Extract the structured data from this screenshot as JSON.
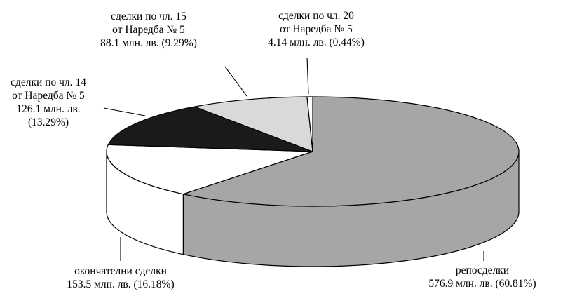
{
  "chart_data": {
    "type": "pie",
    "style": "3d",
    "unit": "млн. лв.",
    "slices": [
      {
        "key": "repo",
        "value": 576.9,
        "percent": 60.81,
        "color": "#a6a6a6",
        "label_lines": [
          "репосделки",
          "576.9 млн. лв. (60.81%)"
        ]
      },
      {
        "key": "final",
        "value": 153.5,
        "percent": 16.18,
        "color": "#ffffff",
        "label_lines": [
          "окончателни сделки",
          "153.5 млн. лв. (16.18%)"
        ]
      },
      {
        "key": "art14",
        "value": 126.1,
        "percent": 13.29,
        "color": "#1a1a1a",
        "label_lines": [
          "сделки по чл. 14",
          "от Наредба № 5",
          "126.1 млн. лв.",
          "(13.29%)"
        ]
      },
      {
        "key": "art15",
        "value": 88.1,
        "percent": 9.29,
        "color": "#d9d9d9",
        "label_lines": [
          "сделки по чл. 15",
          "от Наредба № 5",
          "88.1 млн. лв. (9.29%)"
        ]
      },
      {
        "key": "art20",
        "value": 4.14,
        "percent": 0.44,
        "color": "#ffffff",
        "label_lines": [
          "сделки по чл. 20",
          "от Наредба № 5",
          "4.14 млн. лв. (0.44%)"
        ]
      }
    ]
  }
}
